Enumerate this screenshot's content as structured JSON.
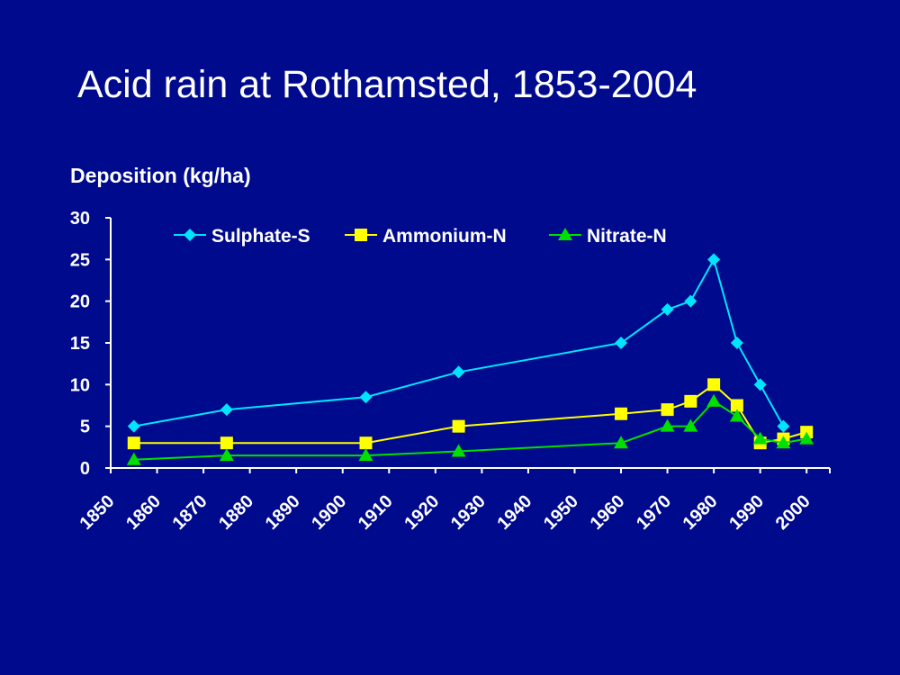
{
  "slide": {
    "title": "Acid rain at Rothamsted, 1853-2004",
    "ylabel": "Deposition (kg/ha)"
  },
  "chart_data": {
    "type": "line",
    "title": "Acid rain at Rothamsted, 1853-2004",
    "xlabel": "",
    "ylabel": "Deposition (kg/ha)",
    "xlim": [
      1850,
      2005
    ],
    "ylim": [
      0,
      30
    ],
    "xticks": [
      1850,
      1860,
      1870,
      1880,
      1890,
      1900,
      1910,
      1920,
      1930,
      1940,
      1950,
      1960,
      1970,
      1980,
      1990,
      2000
    ],
    "yticks": [
      0,
      5,
      10,
      15,
      20,
      25,
      30
    ],
    "grid": false,
    "legend_position": "top",
    "series": [
      {
        "name": "Sulphate-S",
        "color": "#00e5ff",
        "marker": "diamond",
        "x": [
          1855,
          1875,
          1905,
          1925,
          1960,
          1970,
          1975,
          1980,
          1985,
          1990,
          1995
        ],
        "y": [
          5,
          7,
          8.5,
          11.5,
          15,
          19,
          20,
          25,
          15,
          10,
          5
        ]
      },
      {
        "name": "Ammonium-N",
        "color": "#ffff00",
        "marker": "square",
        "x": [
          1855,
          1875,
          1905,
          1925,
          1960,
          1970,
          1975,
          1980,
          1985,
          1990,
          1995,
          2000
        ],
        "y": [
          3,
          3,
          3,
          5,
          6.5,
          7,
          8,
          10,
          7.5,
          3,
          3.5,
          4.3
        ]
      },
      {
        "name": "Nitrate-N",
        "color": "#00e000",
        "marker": "triangle",
        "x": [
          1855,
          1875,
          1905,
          1925,
          1960,
          1970,
          1975,
          1980,
          1985,
          1990,
          1995,
          2000
        ],
        "y": [
          1,
          1.5,
          1.5,
          2,
          3,
          5,
          5,
          8,
          6.2,
          3.5,
          3,
          3.5
        ]
      }
    ]
  }
}
